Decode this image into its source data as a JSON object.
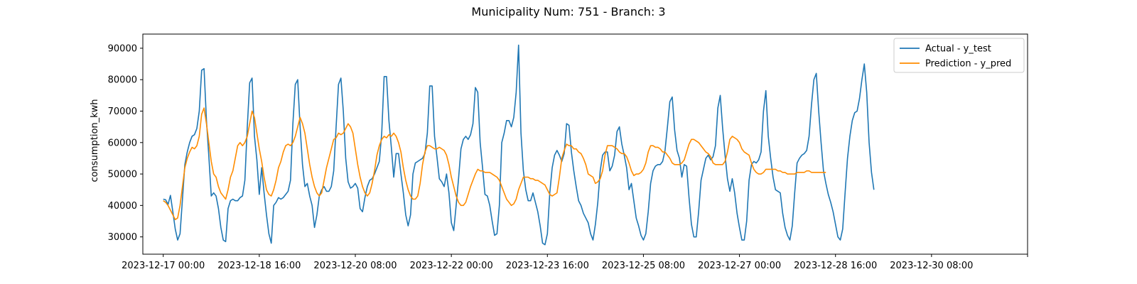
{
  "chart_data": {
    "type": "line",
    "title": "Municipality Num: 751 - Branch: 3",
    "xlabel": "",
    "ylabel": "consumption_kwh",
    "x_start": "2023-12-17 00:00",
    "x_step_hours": 1,
    "xlim_hours": [
      -8.5,
      360
    ],
    "ylim": [
      24500,
      94500
    ],
    "yticks": [
      30000,
      40000,
      50000,
      60000,
      70000,
      80000,
      90000
    ],
    "xticks": [
      {
        "hour": 0,
        "label": "2023-12-17 00:00"
      },
      {
        "hour": 40,
        "label": "2023-12-18 16:00"
      },
      {
        "hour": 80,
        "label": "2023-12-20 08:00"
      },
      {
        "hour": 120,
        "label": "2023-12-22 00:00"
      },
      {
        "hour": 160,
        "label": "2023-12-23 16:00"
      },
      {
        "hour": 200,
        "label": "2023-12-25 08:00"
      },
      {
        "hour": 240,
        "label": "2023-12-27 00:00"
      },
      {
        "hour": 280,
        "label": "2023-12-28 16:00"
      },
      {
        "hour": 320,
        "label": "2023-12-30 08:00"
      },
      {
        "hour": 360,
        "label": ""
      }
    ],
    "grid": false,
    "legend_position": "top-right",
    "series": [
      {
        "name": "Actual - y_test",
        "color": "#1f77b4",
        "values": [
          42000,
          41800,
          40300,
          43200,
          38000,
          32500,
          29000,
          31000,
          42000,
          53000,
          57000,
          60000,
          62000,
          62500,
          64500,
          70000,
          83000,
          83500,
          67000,
          55500,
          43000,
          44000,
          43000,
          39000,
          33000,
          29000,
          28500,
          39000,
          41500,
          42000,
          41500,
          41500,
          42500,
          43000,
          48000,
          65000,
          79000,
          80500,
          62000,
          54500,
          43500,
          52000,
          44000,
          37000,
          31000,
          28000,
          40000,
          41000,
          42500,
          42000,
          42500,
          43500,
          44500,
          48000,
          66000,
          78500,
          80000,
          65000,
          53000,
          46000,
          47000,
          43000,
          40000,
          33000,
          37000,
          43000,
          45000,
          46000,
          44500,
          44500,
          46000,
          51000,
          65000,
          78500,
          80500,
          70000,
          55000,
          47500,
          45500,
          46000,
          47000,
          45500,
          39000,
          38000,
          42500,
          46000,
          48000,
          48500,
          50000,
          52000,
          54000,
          63000,
          81000,
          81000,
          67000,
          58500,
          49000,
          56500,
          56500,
          50000,
          44000,
          37000,
          33500,
          37000,
          50000,
          53500,
          54000,
          54500,
          55000,
          56500,
          63000,
          78000,
          78000,
          62000,
          55500,
          48500,
          47500,
          46000,
          50000,
          44000,
          34500,
          32000,
          40000,
          48500,
          58000,
          61000,
          62000,
          61000,
          62500,
          66000,
          77500,
          76000,
          60000,
          52000,
          43500,
          43000,
          40000,
          35000,
          30500,
          31000,
          40000,
          60000,
          63000,
          67000,
          67000,
          65000,
          68000,
          76000,
          91000,
          63000,
          51000,
          45000,
          41500,
          41500,
          44000,
          41000,
          38000,
          33500,
          28000,
          27500,
          31000,
          44000,
          52000,
          56000,
          57500,
          56000,
          54000,
          56500,
          66000,
          65500,
          57000,
          51000,
          46000,
          41500,
          40000,
          37500,
          36000,
          34500,
          31000,
          29000,
          34000,
          41000,
          51000,
          56000,
          57000,
          57000,
          51000,
          52500,
          56000,
          63500,
          65000,
          59500,
          56000,
          52000,
          45000,
          47000,
          41500,
          36000,
          33500,
          30500,
          29000,
          31000,
          38000,
          47000,
          51000,
          52500,
          53000,
          53000,
          54000,
          57500,
          65000,
          73000,
          74500,
          64000,
          57500,
          55000,
          49000,
          53000,
          52500,
          42500,
          34000,
          30000,
          30000,
          38000,
          48000,
          51500,
          55000,
          56000,
          54500,
          55500,
          59000,
          71000,
          75000,
          64500,
          56000,
          48500,
          44500,
          48500,
          44000,
          37500,
          33000,
          29000,
          29000,
          35000,
          48000,
          53000,
          54000,
          53500,
          54500,
          57000,
          70000,
          76500,
          62000,
          55000,
          49000,
          45000,
          44500,
          44000,
          37500,
          33000,
          30500,
          29000,
          33500,
          44000,
          53500,
          55000,
          56000,
          56500,
          57500,
          62000,
          72000,
          80000,
          82000,
          70000,
          60000,
          51000,
          47000,
          43500,
          41000,
          38000,
          34000,
          30000,
          29000,
          32500,
          44000,
          55000,
          62000,
          67000,
          69500,
          70000,
          74000,
          80000,
          85000,
          76000,
          60000,
          50500,
          45000
        ]
      },
      {
        "name": "Prediction - y_pred",
        "color": "#ff8c00",
        "values": [
          41500,
          41000,
          40000,
          38500,
          37000,
          35500,
          36000,
          40000,
          46000,
          52000,
          55000,
          57000,
          58500,
          58000,
          59000,
          62000,
          69000,
          71000,
          66000,
          60000,
          54000,
          50000,
          49000,
          46000,
          44000,
          43000,
          42000,
          45000,
          49000,
          51000,
          55000,
          59000,
          60000,
          59000,
          60000,
          62000,
          66000,
          70000,
          68000,
          63000,
          58000,
          54000,
          49000,
          45000,
          43500,
          43000,
          45000,
          48000,
          52000,
          54000,
          57000,
          59000,
          59500,
          59000,
          60000,
          62000,
          65000,
          68000,
          66000,
          63000,
          58000,
          53000,
          49000,
          46000,
          44000,
          43000,
          44000,
          48000,
          52000,
          55000,
          58000,
          61000,
          61500,
          63000,
          62500,
          63000,
          64500,
          66000,
          65000,
          63000,
          58000,
          53000,
          49000,
          46000,
          44000,
          43000,
          44000,
          47000,
          51000,
          56000,
          59000,
          61000,
          62000,
          61500,
          62500,
          62000,
          63000,
          62000,
          60000,
          57000,
          52000,
          48000,
          45000,
          43000,
          42000,
          42000,
          43000,
          47000,
          53000,
          57000,
          59000,
          59000,
          58500,
          58000,
          58000,
          58500,
          58000,
          57500,
          56000,
          53000,
          49000,
          46000,
          43000,
          41000,
          40000,
          40000,
          41000,
          43500,
          46000,
          48000,
          50000,
          51500,
          51000,
          51000,
          50500,
          50500,
          50500,
          50000,
          49500,
          49000,
          48000,
          46000,
          44000,
          42000,
          41000,
          40000,
          40500,
          42000,
          45000,
          47000,
          49000,
          49000,
          49000,
          48500,
          48500,
          48000,
          48000,
          47500,
          47000,
          46500,
          45000,
          43500,
          43000,
          43500,
          44000,
          49000,
          55000,
          57500,
          59500,
          59000,
          59000,
          58000,
          58000,
          57000,
          56500,
          55000,
          53000,
          50000,
          49500,
          49000,
          47000,
          47500,
          48500,
          51000,
          56000,
          59000,
          59000,
          59000,
          58500,
          58000,
          57000,
          56500,
          56500,
          55500,
          53500,
          51000,
          49500,
          50000,
          50000,
          50500,
          51500,
          53500,
          57000,
          59000,
          59000,
          58500,
          58500,
          58000,
          57000,
          57000,
          56000,
          55000,
          53500,
          53000,
          53000,
          53000,
          53500,
          54500,
          57000,
          59500,
          61000,
          61000,
          60500,
          60000,
          59000,
          58000,
          57000,
          56500,
          55500,
          53500,
          53000,
          53000,
          53000,
          53000,
          54000,
          57000,
          61000,
          62000,
          61500,
          61000,
          60000,
          58000,
          57000,
          56500,
          56000,
          53500,
          51500,
          50500,
          50000,
          50000,
          50500,
          51500,
          51500,
          51500,
          51500,
          51500,
          51000,
          51000,
          50500,
          50500,
          50000,
          50000,
          50000,
          50000,
          50500,
          50500,
          50500,
          50500,
          51000,
          51000,
          50500,
          50500,
          50500,
          50500,
          50500,
          50500,
          50500
        ]
      }
    ]
  }
}
